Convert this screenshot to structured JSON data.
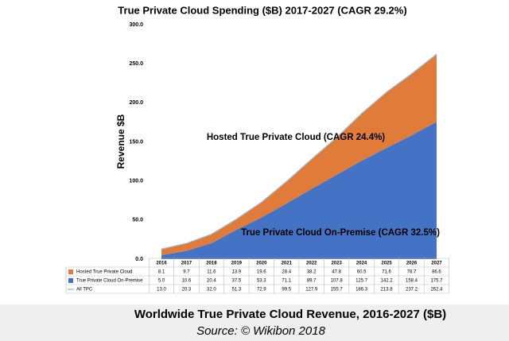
{
  "chart_data": {
    "type": "stacked_area",
    "title": "True Private Cloud Spending ($B) 2017-2027 (CAGR 29.2%)",
    "y_label": "Revenue $B",
    "categories": [
      "2016",
      "2017",
      "2018",
      "2019",
      "2020",
      "2021",
      "2022",
      "2023",
      "2024",
      "2025",
      "2026",
      "2027"
    ],
    "series": [
      {
        "name": "Hosted True Private Cloud",
        "color": "#e07b39",
        "stack": true,
        "values": [
          8.1,
          9.7,
          11.6,
          13.9,
          19.6,
          28.4,
          38.2,
          47.8,
          60.5,
          71.6,
          78.7,
          86.6
        ],
        "value_labels": [
          "8.1",
          "9.7",
          "11.6",
          "13.9",
          "19.6",
          "28.4",
          "38.2",
          "47.8",
          "60.5",
          "71.6",
          "78.7",
          "86.6"
        ]
      },
      {
        "name": "True Private Cloud On-Premise",
        "color": "#4472c4",
        "stack": true,
        "values": [
          5.0,
          10.6,
          20.4,
          37.5,
          53.3,
          71.1,
          89.7,
          107.8,
          125.7,
          142.2,
          158.4,
          175.7
        ],
        "value_labels": [
          "5.0",
          "10.6",
          "20.4",
          "37.5",
          "53.3",
          "71.1",
          "89.7",
          "107.8",
          "125.7",
          "142.2",
          "158.4",
          "175.7"
        ]
      },
      {
        "name": "All TPC",
        "color": "#9dc3e6",
        "stack": false,
        "values": [
          13.0,
          20.3,
          32.0,
          51.3,
          72.9,
          99.5,
          127.9,
          155.7,
          186.3,
          213.8,
          237.2,
          262.4
        ],
        "value_labels": [
          "13.0",
          "20.3",
          "32.0",
          "51.3",
          "72.9",
          "99.5",
          "127.9",
          "155.7",
          "186.3",
          "213.8",
          "237.2",
          "262.4"
        ]
      }
    ],
    "ylim": [
      0,
      300
    ],
    "yticks": [
      {
        "value": 0,
        "label": "0.0"
      },
      {
        "value": 50,
        "label": "50.0"
      },
      {
        "value": 100,
        "label": "100.0"
      },
      {
        "value": 150,
        "label": "150.0"
      },
      {
        "value": 200,
        "label": "200.0"
      },
      {
        "value": 250,
        "label": "250.0"
      },
      {
        "value": 300,
        "label": "300.0"
      }
    ],
    "annotations": [
      "Hosted True Private Cloud (CAGR 24.4%)",
      "True Private Cloud On-Premise (CAGR 32.5%)"
    ],
    "caption": "Worldwide True Private Cloud Revenue, 2016-2027 ($B)",
    "source": "Source: © Wikibon 2018"
  }
}
